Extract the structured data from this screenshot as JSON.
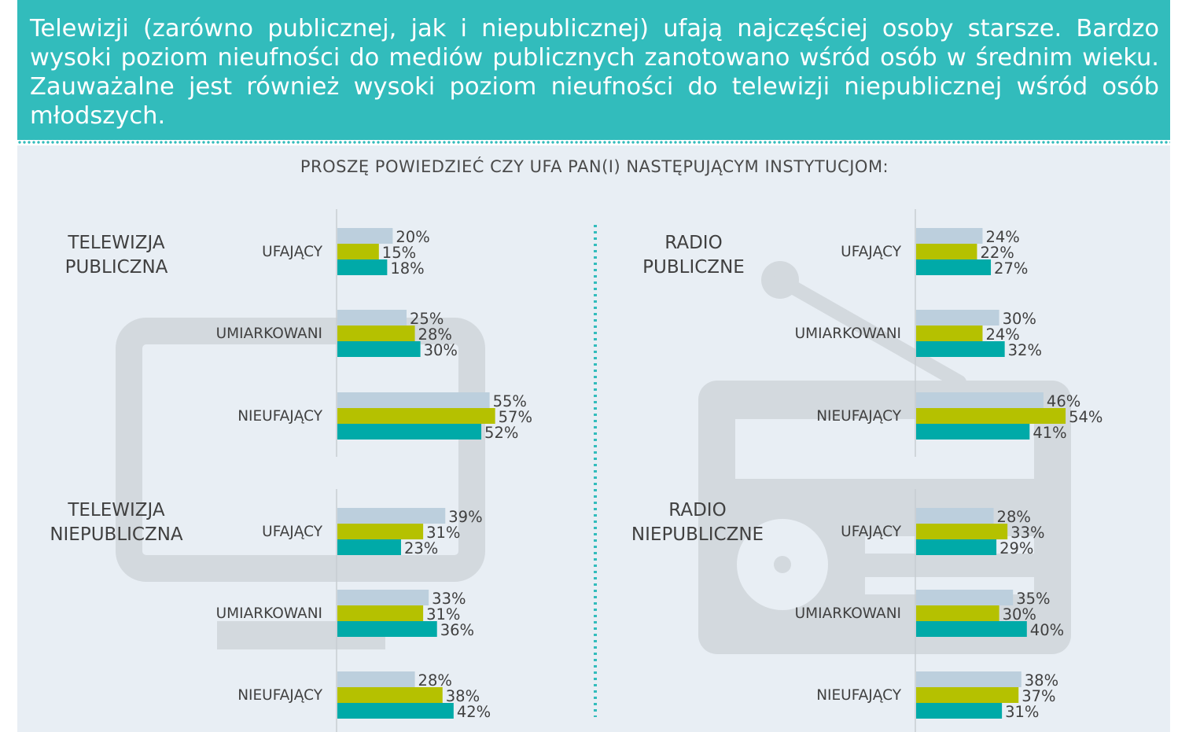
{
  "header": {
    "text": "Telewizji (zarówno publicznej, jak i niepublicznej) ufają najczęściej osoby starsze. Bardzo wysoki poziom nieufności do mediów publicznych zanotowano wśród osób w średnim wieku. Zauważalne jest również wysoki poziom nieufności do telewizji niepublicznej wśród osób młodszych."
  },
  "question": "PROSZĘ POWIEDZIEĆ CZY UFA PAN(I) NASTĘPUJĄCYM INSTYTUCJOM:",
  "colors": {
    "series1": "#bccfdd",
    "series2": "#b5c100",
    "series3": "#00aaa8",
    "accent": "#32bcbc",
    "icon": "#d3d9de",
    "text": "#404040"
  },
  "icons": [
    "tv-icon",
    "radio-icon"
  ],
  "chart_data": [
    {
      "type": "bar",
      "title": "TELEWIZJA\nPUBLICZNA",
      "categories": [
        "UFAJĄCY",
        "UMIARKOWANI",
        "NIEUFAJĄCY"
      ],
      "series": [
        {
          "values": [
            20,
            25,
            55
          ]
        },
        {
          "values": [
            15,
            28,
            57
          ]
        },
        {
          "values": [
            18,
            30,
            52
          ]
        }
      ]
    },
    {
      "type": "bar",
      "title": "TELEWIZJA\nNIEPUBLICZNA",
      "categories": [
        "UFAJĄCY",
        "UMIARKOWANI",
        "NIEUFAJĄCY"
      ],
      "series": [
        {
          "values": [
            39,
            33,
            28
          ]
        },
        {
          "values": [
            31,
            31,
            38
          ]
        },
        {
          "values": [
            23,
            36,
            42
          ]
        }
      ]
    },
    {
      "type": "bar",
      "title": "RADIO\nPUBLICZNE",
      "categories": [
        "UFAJĄCY",
        "UMIARKOWANI",
        "NIEUFAJĄCY"
      ],
      "series": [
        {
          "values": [
            24,
            30,
            46
          ]
        },
        {
          "values": [
            22,
            24,
            54
          ]
        },
        {
          "values": [
            27,
            32,
            41
          ]
        }
      ]
    },
    {
      "type": "bar",
      "title": "RADIO\nNIEPUBLICZNE",
      "categories": [
        "UFAJĄCY",
        "UMIARKOWANI",
        "NIEUFAJĄCY"
      ],
      "series": [
        {
          "values": [
            28,
            35,
            38
          ]
        },
        {
          "values": [
            33,
            30,
            37
          ]
        },
        {
          "values": [
            29,
            40,
            31
          ]
        }
      ]
    }
  ]
}
